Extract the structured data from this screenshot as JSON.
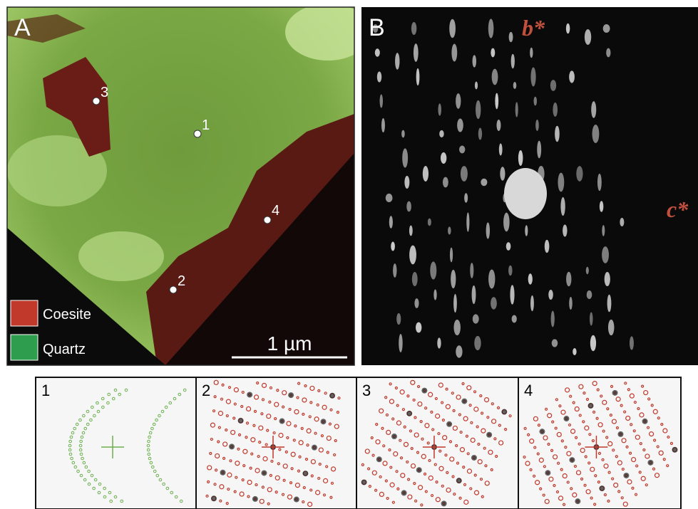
{
  "panel_a": {
    "label": "A",
    "points": [
      {
        "label": "1"
      },
      {
        "label": "2"
      },
      {
        "label": "3"
      },
      {
        "label": "4"
      }
    ],
    "legend": [
      {
        "label": "Coesite"
      },
      {
        "label": "Quartz"
      }
    ],
    "scale_bar": "1 µm"
  },
  "panel_b": {
    "label": "B",
    "axes": [
      "b*",
      "c*"
    ]
  },
  "patterns": [
    {
      "label": "1"
    },
    {
      "label": "2"
    },
    {
      "label": "3"
    },
    {
      "label": "4"
    }
  ]
}
